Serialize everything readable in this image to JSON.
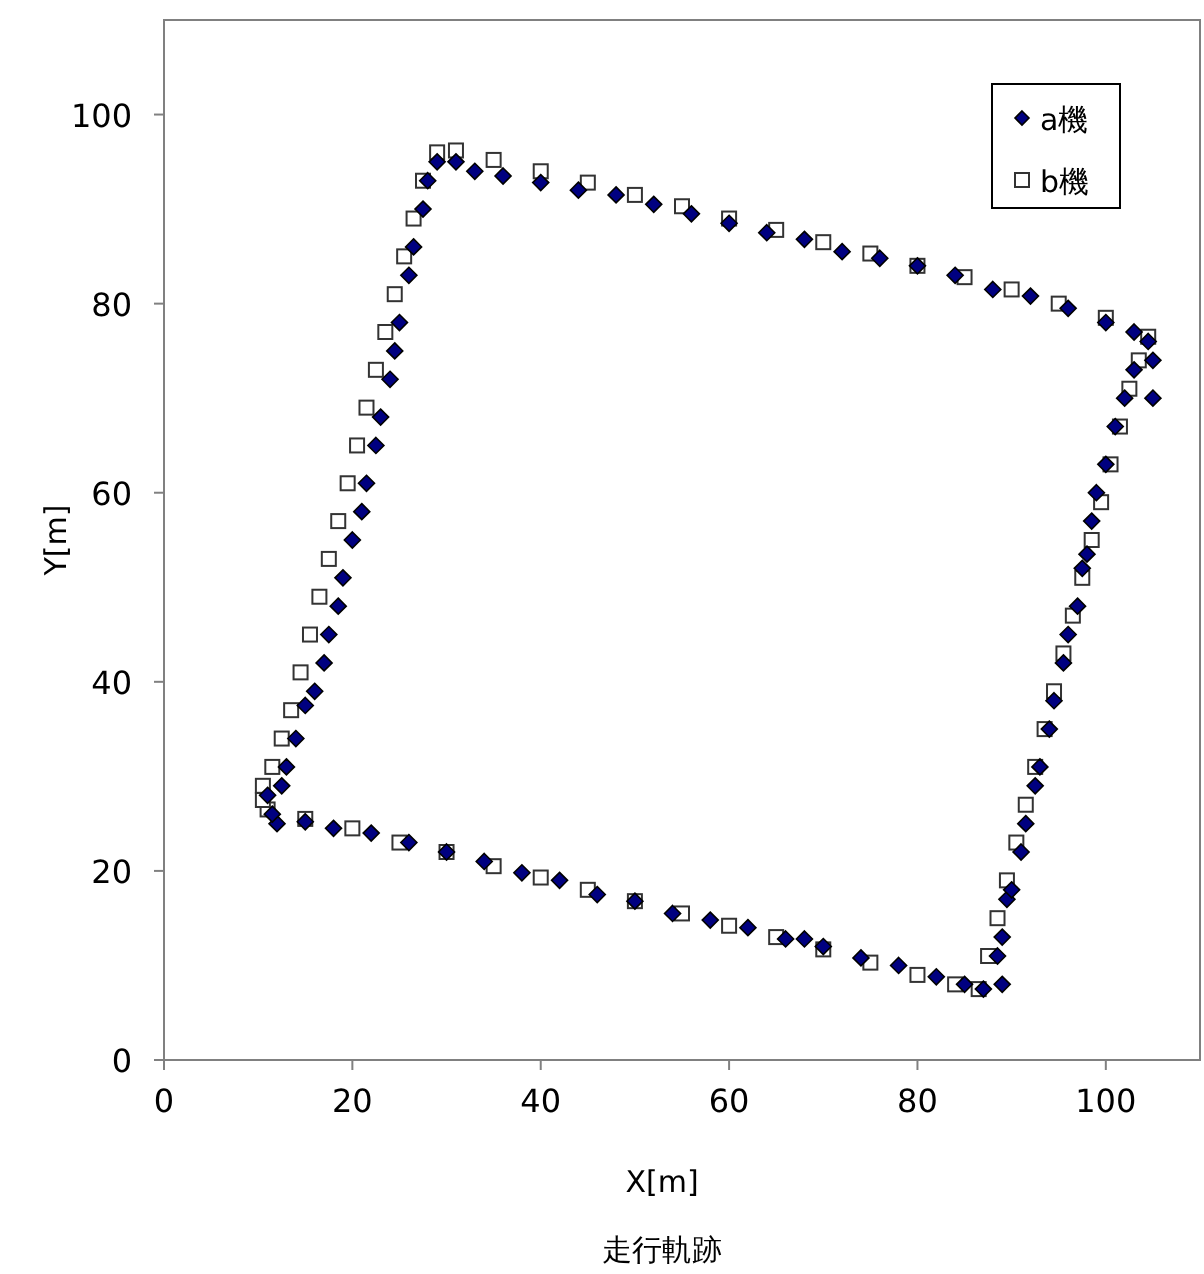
{
  "chart_data": {
    "type": "scatter",
    "title": "走行軌跡",
    "xlabel": "X[m]",
    "ylabel": "Y[m]",
    "xlim": [
      0,
      110
    ],
    "ylim": [
      0,
      110
    ],
    "xticks": [
      0,
      20,
      40,
      60,
      80,
      100
    ],
    "yticks": [
      0,
      20,
      40,
      60,
      80,
      100
    ],
    "legend": "top right",
    "series": [
      {
        "name": "a機",
        "color": "#000080",
        "marker": "diamond",
        "x": [
          12,
          15,
          18,
          22,
          26,
          30,
          34,
          38,
          42,
          46,
          50,
          54,
          58,
          62,
          66,
          68,
          70,
          74,
          78,
          82,
          85,
          87,
          89,
          88.5,
          89,
          89.5,
          90,
          91,
          91.5,
          92.5,
          93,
          94,
          94.5,
          95.5,
          96,
          97,
          97.5,
          98,
          98.5,
          99,
          100,
          101,
          102,
          103,
          104.5,
          105,
          105,
          103,
          100,
          96,
          92,
          88,
          84,
          80,
          76,
          72,
          68,
          64,
          60,
          56,
          52,
          48,
          44,
          40,
          36,
          33,
          31,
          29,
          28,
          27.5,
          26.5,
          26,
          25,
          24.5,
          24,
          23,
          22.5,
          21.5,
          21,
          20,
          19,
          18.5,
          17.5,
          17,
          16,
          15,
          14,
          13,
          12.5,
          11,
          11.5
        ],
        "values": [
          25,
          25.2,
          24.5,
          24,
          23,
          22,
          21,
          19.8,
          19,
          17.5,
          16.8,
          15.5,
          14.8,
          14,
          12.8,
          12.8,
          12,
          10.8,
          10,
          8.8,
          8,
          7.5,
          8,
          11,
          13,
          17,
          18,
          22,
          25,
          29,
          31,
          35,
          38,
          42,
          45,
          48,
          52,
          53.5,
          57,
          60,
          63,
          67,
          70,
          73,
          76,
          74,
          70,
          77,
          78,
          79.5,
          80.8,
          81.5,
          83,
          84,
          84.8,
          85.5,
          86.8,
          87.5,
          88.5,
          89.5,
          90.5,
          91.5,
          92,
          92.8,
          93.5,
          94,
          95,
          95,
          93,
          90,
          86,
          83,
          78,
          75,
          72,
          68,
          65,
          61,
          58,
          55,
          51,
          48,
          45,
          42,
          39,
          37.5,
          34,
          31,
          29,
          28,
          26
        ]
      },
      {
        "name": "b機",
        "color": "#ffffff",
        "marker": "square",
        "x": [
          11,
          15,
          20,
          25,
          30,
          35,
          40,
          45,
          50,
          55,
          60,
          65,
          70,
          75,
          80,
          84,
          86.5,
          87.5,
          88.5,
          89.5,
          90.5,
          91.5,
          92.5,
          93.5,
          94.5,
          95.5,
          96.5,
          97.5,
          98.5,
          99.5,
          100.5,
          101.5,
          102.5,
          103.5,
          104.5,
          100,
          95,
          90,
          85,
          80,
          75,
          70,
          65,
          60,
          55,
          50,
          45,
          40,
          35,
          31,
          29,
          27.5,
          26.5,
          25.5,
          24.5,
          23.5,
          22.5,
          21.5,
          20.5,
          19.5,
          18.5,
          17.5,
          16.5,
          15.5,
          14.5,
          13.5,
          12.5,
          11.5,
          10.5,
          10.5
        ],
        "values": [
          26.5,
          25.5,
          24.5,
          23,
          22,
          20.5,
          19.3,
          18,
          16.8,
          15.5,
          14.2,
          13,
          11.7,
          10.3,
          9,
          8,
          7.5,
          11,
          15,
          19,
          23,
          27,
          31,
          35,
          39,
          43,
          47,
          51,
          55,
          59,
          63,
          67,
          71,
          74,
          76.5,
          78.5,
          80,
          81.5,
          82.8,
          84,
          85.3,
          86.5,
          87.8,
          89,
          90.3,
          91.5,
          92.8,
          94,
          95.2,
          96.2,
          96,
          93,
          89,
          85,
          81,
          77,
          73,
          69,
          65,
          61,
          57,
          53,
          49,
          45,
          41,
          37,
          34,
          31,
          29,
          27.5
        ]
      }
    ]
  }
}
